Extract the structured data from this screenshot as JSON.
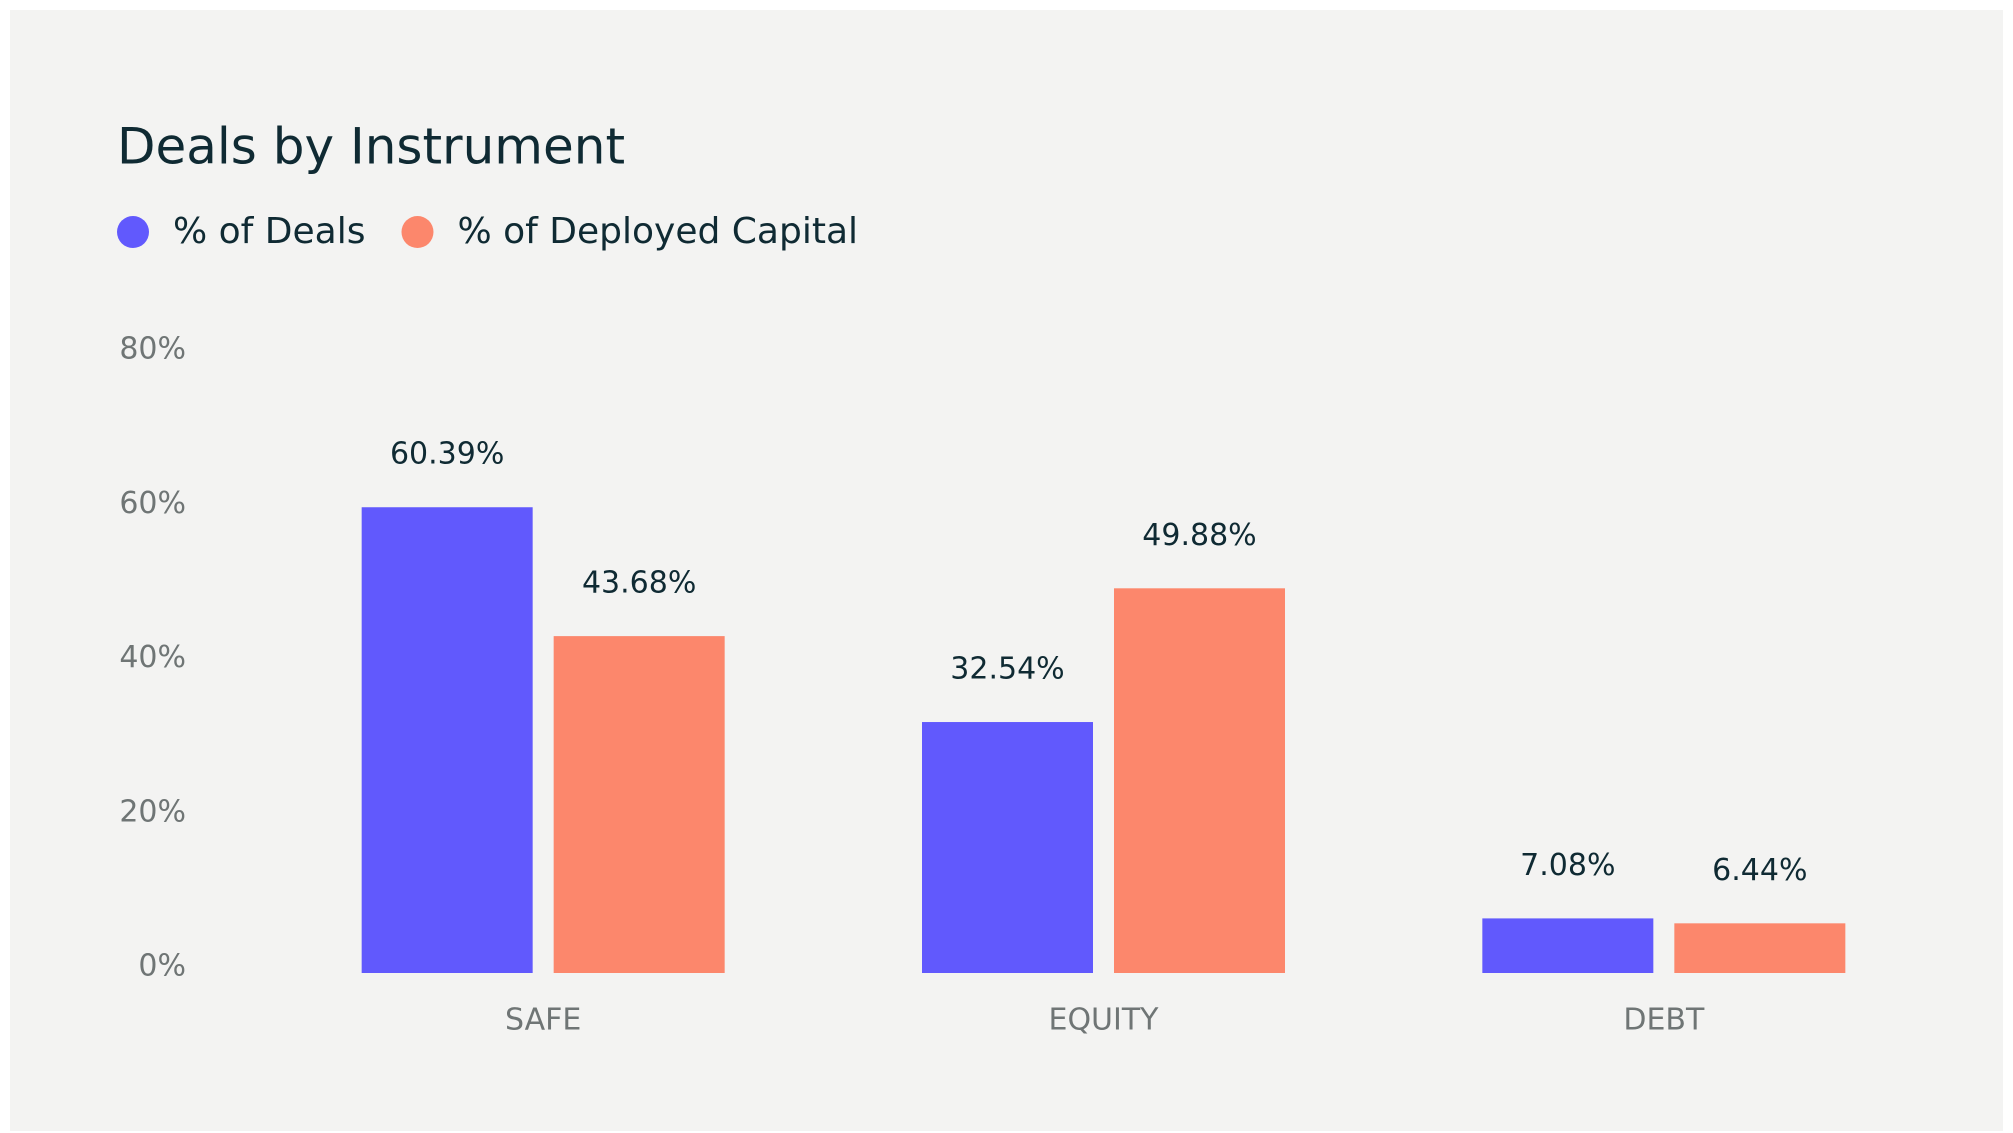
{
  "chart_data": {
    "type": "bar",
    "title": "Deals by Instrument",
    "categories": [
      "SAFE",
      "EQUITY",
      "DEBT"
    ],
    "series": [
      {
        "name": "% of Deals",
        "color": "#6159fd",
        "values": [
          60.39,
          32.54,
          7.08
        ],
        "value_labels": [
          "60.39%",
          "32.54%",
          "7.08%"
        ]
      },
      {
        "name": "% of Deployed Capital",
        "color": "#fc876c",
        "values": [
          43.68,
          49.88,
          6.44
        ],
        "value_labels": [
          "43.68%",
          "49.88%",
          "6.44%"
        ]
      }
    ],
    "ylim": [
      0,
      80
    ],
    "yticks": [
      {
        "value": 0,
        "label": "0%"
      },
      {
        "value": 20,
        "label": "20%"
      },
      {
        "value": 40,
        "label": "40%"
      },
      {
        "value": 60,
        "label": "60%"
      },
      {
        "value": 80,
        "label": "80%"
      }
    ],
    "grid": false,
    "legend": "top-left"
  }
}
